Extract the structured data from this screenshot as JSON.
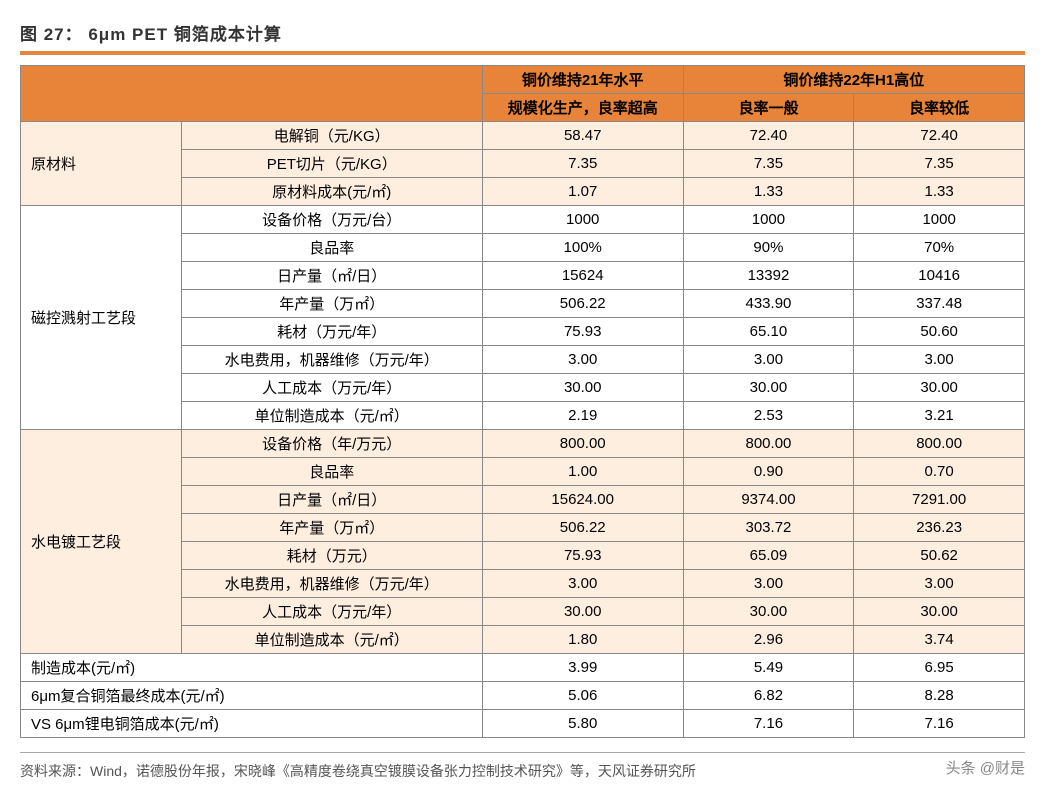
{
  "figure_title": "图 27： 6μm PET 铜箔成本计算",
  "header": {
    "group1": "铜价维持21年水平",
    "group2": "铜价维持22年H1高位",
    "sub1": "规模化生产，良率超高",
    "sub2": "良率一般",
    "sub3": "良率较低"
  },
  "sections": [
    {
      "name": "原材料",
      "shade": "odd",
      "rows": [
        {
          "label": "电解铜（元/KG）",
          "v": [
            "58.47",
            "72.40",
            "72.40"
          ]
        },
        {
          "label": "PET切片（元/KG）",
          "v": [
            "7.35",
            "7.35",
            "7.35"
          ]
        },
        {
          "label": "原材料成本(元/㎡)",
          "v": [
            "1.07",
            "1.33",
            "1.33"
          ]
        }
      ]
    },
    {
      "name": "磁控溅射工艺段",
      "shade": "even",
      "rows": [
        {
          "label": "设备价格（万元/台）",
          "v": [
            "1000",
            "1000",
            "1000"
          ]
        },
        {
          "label": "良品率",
          "v": [
            "100%",
            "90%",
            "70%"
          ]
        },
        {
          "label": "日产量（㎡/日）",
          "v": [
            "15624",
            "13392",
            "10416"
          ]
        },
        {
          "label": "年产量（万㎡）",
          "v": [
            "506.22",
            "433.90",
            "337.48"
          ]
        },
        {
          "label": "耗材（万元/年）",
          "v": [
            "75.93",
            "65.10",
            "50.60"
          ]
        },
        {
          "label": "水电费用，机器维修（万元/年）",
          "v": [
            "3.00",
            "3.00",
            "3.00"
          ]
        },
        {
          "label": "人工成本（万元/年）",
          "v": [
            "30.00",
            "30.00",
            "30.00"
          ]
        },
        {
          "label": "单位制造成本（元/㎡）",
          "v": [
            "2.19",
            "2.53",
            "3.21"
          ]
        }
      ]
    },
    {
      "name": "水电镀工艺段",
      "shade": "odd",
      "rows": [
        {
          "label": "设备价格（年/万元）",
          "v": [
            "800.00",
            "800.00",
            "800.00"
          ]
        },
        {
          "label": "良品率",
          "v": [
            "1.00",
            "0.90",
            "0.70"
          ]
        },
        {
          "label": "日产量（㎡/日）",
          "v": [
            "15624.00",
            "9374.00",
            "7291.00"
          ]
        },
        {
          "label": "年产量（万㎡）",
          "v": [
            "506.22",
            "303.72",
            "236.23"
          ]
        },
        {
          "label": "耗材（万元）",
          "v": [
            "75.93",
            "65.09",
            "50.62"
          ]
        },
        {
          "label": "水电费用，机器维修（万元/年）",
          "v": [
            "3.00",
            "3.00",
            "3.00"
          ]
        },
        {
          "label": "人工成本（万元/年）",
          "v": [
            "30.00",
            "30.00",
            "30.00"
          ]
        },
        {
          "label": "单位制造成本（元/㎡）",
          "v": [
            "1.80",
            "2.96",
            "3.74"
          ]
        }
      ]
    }
  ],
  "footer_rows": [
    {
      "label": "制造成本(元/㎡)",
      "v": [
        "3.99",
        "5.49",
        "6.95"
      ]
    },
    {
      "label": "6μm复合铜箔最终成本(元/㎡)",
      "v": [
        "5.06",
        "6.82",
        "8.28"
      ]
    },
    {
      "label": "VS 6μm锂电铜箔成本(元/㎡)",
      "v": [
        "5.80",
        "7.16",
        "7.16"
      ]
    }
  ],
  "source": "资料来源：Wind，诺德股份年报，宋晓峰《高精度卷绕真空镀膜设备张力控制技术研究》等，天风证券研究所",
  "watermark": "头条 @财是",
  "colors": {
    "orange": "#e8833a",
    "section_odd_bg": "#fdeee0",
    "section_even_bg": "#ffffff",
    "border": "#888888"
  }
}
